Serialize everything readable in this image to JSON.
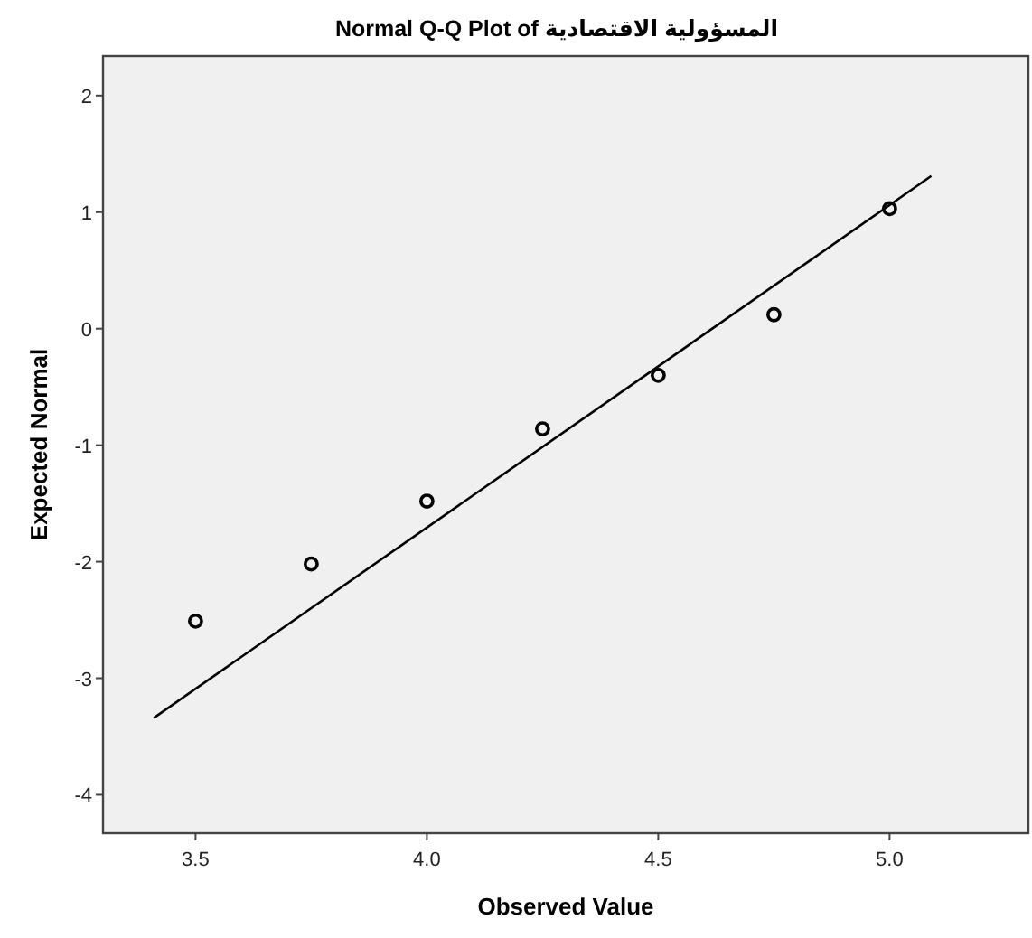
{
  "chart_data": {
    "type": "scatter",
    "title": "Normal Q-Q Plot of المسؤولية الاقتصادية",
    "xlabel": "Observed Value",
    "ylabel": "Expected Normal",
    "xlim": [
      3.3,
      5.3
    ],
    "ylim": [
      -4.33,
      2.34
    ],
    "xticks": [
      3.5,
      {
        "value": 4,
        "label": "4.0"
      },
      4.5,
      {
        "value": 5,
        "label": "5.0"
      }
    ],
    "yticks": [
      -4,
      -3,
      -2,
      -1,
      0,
      1,
      2
    ],
    "grid": false,
    "marker": "circle",
    "series": [
      {
        "color": "#000000",
        "x": [
          3.5,
          3.75,
          4.0,
          4.25,
          4.5,
          4.75,
          5.0
        ],
        "values": [
          -2.51,
          -2.02,
          -1.48,
          -0.86,
          -0.4,
          0.12,
          1.03
        ]
      },
      {
        "type": "line",
        "color": "#000000",
        "marker": "none",
        "x": [
          3.41,
          5.09
        ],
        "values": [
          -3.34,
          1.31
        ]
      }
    ]
  }
}
